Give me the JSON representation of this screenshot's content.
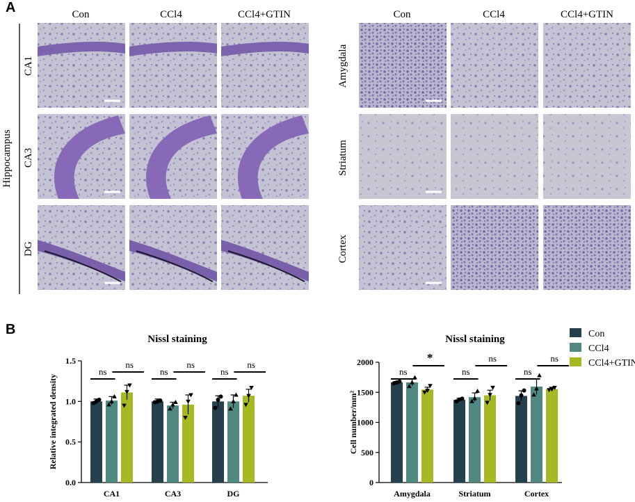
{
  "panel_a": {
    "label": "A",
    "left": {
      "columns": [
        "Con",
        "CCl4",
        "CCl4+GTIN"
      ],
      "group_label": "Hippocampus",
      "rows": [
        "CA1",
        "CA3",
        "DG"
      ]
    },
    "right": {
      "columns": [
        "Con",
        "CCl4",
        "CCl4+GTIN"
      ],
      "rows": [
        "Amygdala",
        "Striatum",
        "Cortex"
      ]
    }
  },
  "panel_b": {
    "label": "B"
  },
  "legend": {
    "entries": [
      {
        "name": "Con",
        "color": "#25414d"
      },
      {
        "name": "CCl4",
        "color": "#4f8982"
      },
      {
        "name": "CCl4+GTIN",
        "color": "#a6b922"
      }
    ]
  },
  "chart_data": [
    {
      "type": "bar",
      "title": "Nissl staining",
      "ylabel": "Relative integrated density",
      "xlabel": "",
      "ylim": [
        0,
        1.5
      ],
      "yticks": [
        "0.0",
        "0.5",
        "1.0",
        "1.5"
      ],
      "categories": [
        "CA1",
        "CA3",
        "DG"
      ],
      "series": [
        {
          "name": "Con",
          "values": [
            1.0,
            1.0,
            1.0
          ],
          "errors": [
            0.03,
            0.03,
            0.07
          ],
          "points": [
            [
              0.98,
              1.0,
              1.02
            ],
            [
              0.99,
              1.0,
              1.01
            ],
            [
              0.92,
              1.02,
              1.06
            ]
          ]
        },
        {
          "name": "CCl4",
          "values": [
            1.01,
            0.95,
            1.0
          ],
          "errors": [
            0.05,
            0.04,
            0.08
          ],
          "points": [
            [
              0.96,
              1.0,
              1.06
            ],
            [
              0.91,
              0.96,
              0.99
            ],
            [
              0.91,
              1.0,
              1.08
            ]
          ]
        },
        {
          "name": "CCl4+GTIN",
          "values": [
            1.11,
            0.96,
            1.07
          ],
          "errors": [
            0.09,
            0.12,
            0.08
          ],
          "points": [
            [
              0.95,
              1.12,
              1.2
            ],
            [
              0.8,
              1.0,
              1.08
            ],
            [
              0.96,
              1.07,
              1.17
            ]
          ]
        }
      ],
      "comparisons": [
        {
          "category": "CA1",
          "label": "ns",
          "pair": "Con-CCl4"
        },
        {
          "category": "CA1",
          "label": "ns",
          "pair": "CCl4-CCl4+GTIN"
        },
        {
          "category": "CA3",
          "label": "ns",
          "pair": "Con-CCl4"
        },
        {
          "category": "CA3",
          "label": "ns",
          "pair": "CCl4-CCl4+GTIN"
        },
        {
          "category": "DG",
          "label": "ns",
          "pair": "Con-CCl4"
        },
        {
          "category": "DG",
          "label": "ns",
          "pair": "CCl4-CCl4+GTIN"
        }
      ],
      "grid": false,
      "legend": "none"
    },
    {
      "type": "bar",
      "title": "Nissl staining",
      "ylabel": "Cell number/mm²",
      "xlabel": "",
      "ylim": [
        0,
        2000
      ],
      "yticks": [
        "0",
        "500",
        "1000",
        "1500",
        "2000"
      ],
      "categories": [
        "Amygdala",
        "Striatum",
        "Cortex"
      ],
      "series": [
        {
          "name": "Con",
          "values": [
            1665,
            1375,
            1440
          ],
          "errors": [
            15,
            25,
            85
          ],
          "points": [
            [
              1650,
              1665,
              1680
            ],
            [
              1350,
              1380,
              1395
            ],
            [
              1320,
              1450,
              1530
            ]
          ]
        },
        {
          "name": "CCl4",
          "values": [
            1665,
            1420,
            1595
          ],
          "errors": [
            55,
            70,
            130
          ],
          "points": [
            [
              1600,
              1665,
              1745
            ],
            [
              1350,
              1400,
              1520
            ],
            [
              1460,
              1560,
              1780
            ]
          ]
        },
        {
          "name": "CCl4+GTIN",
          "values": [
            1545,
            1450,
            1555
          ],
          "errors": [
            40,
            85,
            30
          ],
          "points": [
            [
              1500,
              1530,
              1610
            ],
            [
              1330,
              1460,
              1580
            ],
            [
              1540,
              1550,
              1580
            ]
          ]
        }
      ],
      "comparisons": [
        {
          "category": "Amygdala",
          "label": "ns",
          "pair": "Con-CCl4"
        },
        {
          "category": "Amygdala",
          "label": "*",
          "pair": "CCl4-CCl4+GTIN"
        },
        {
          "category": "Striatum",
          "label": "ns",
          "pair": "Con-CCl4"
        },
        {
          "category": "Striatum",
          "label": "ns",
          "pair": "CCl4-CCl4+GTIN"
        },
        {
          "category": "Cortex",
          "label": "ns",
          "pair": "Con-CCl4"
        },
        {
          "category": "Cortex",
          "label": "ns",
          "pair": "CCl4-CCl4+GTIN"
        }
      ],
      "grid": false,
      "legend": "top-right"
    }
  ]
}
